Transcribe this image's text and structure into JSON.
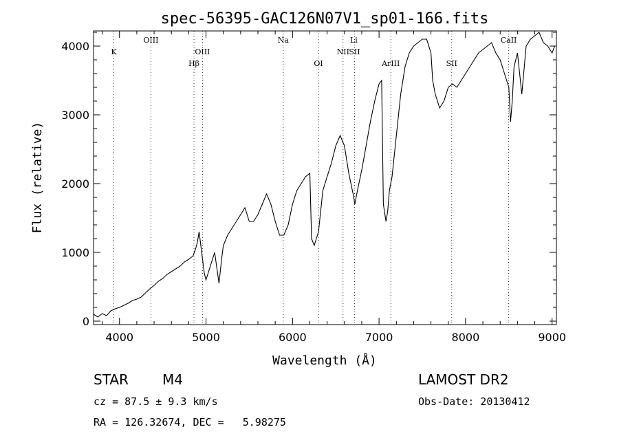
{
  "chart_data": {
    "type": "line",
    "title": "spec-56395-GAC126N07V1_sp01-166.fits",
    "xlabel": "Wavelength (Å)",
    "ylabel": "Flux (relative)",
    "xlim": [
      3700,
      9050
    ],
    "ylim": [
      -50,
      4220
    ],
    "xticks": [
      4000,
      5000,
      6000,
      7000,
      8000,
      9000
    ],
    "yticks": [
      0,
      1000,
      2000,
      3000,
      4000
    ],
    "grid": false,
    "line_color": "#000000",
    "series": [
      {
        "x": [
          3700,
          3750,
          3800,
          3850,
          3900,
          3950,
          4000,
          4050,
          4100,
          4150,
          4200,
          4250,
          4300,
          4350,
          4400,
          4450,
          4500,
          4550,
          4600,
          4650,
          4700,
          4750,
          4800,
          4850,
          4880,
          4900,
          4920,
          4950,
          4980,
          5000,
          5050,
          5100,
          5150,
          5180,
          5200,
          5250,
          5300,
          5350,
          5400,
          5450,
          5500,
          5550,
          5600,
          5650,
          5700,
          5750,
          5800,
          5850,
          5900,
          5950,
          6000,
          6050,
          6100,
          6150,
          6200,
          6220,
          6250,
          6300,
          6350,
          6400,
          6450,
          6500,
          6550,
          6600,
          6650,
          6700,
          6720,
          6750,
          6800,
          6850,
          6900,
          6950,
          7000,
          7030,
          7050,
          7080,
          7100,
          7120,
          7150,
          7200,
          7250,
          7300,
          7350,
          7400,
          7450,
          7500,
          7550,
          7600,
          7620,
          7650,
          7700,
          7750,
          7800,
          7850,
          7900,
          7950,
          8000,
          8050,
          8100,
          8150,
          8200,
          8250,
          8300,
          8350,
          8400,
          8450,
          8500,
          8520,
          8540,
          8560,
          8600,
          8650,
          8700,
          8750,
          8800,
          8850,
          8900,
          8950,
          9000,
          9030
        ],
        "y": [
          100,
          60,
          110,
          80,
          150,
          180,
          200,
          230,
          260,
          300,
          320,
          350,
          410,
          470,
          520,
          580,
          620,
          680,
          720,
          760,
          800,
          860,
          900,
          950,
          1050,
          1150,
          1300,
          1000,
          700,
          600,
          800,
          1000,
          550,
          900,
          1100,
          1250,
          1350,
          1450,
          1550,
          1650,
          1450,
          1450,
          1550,
          1700,
          1850,
          1700,
          1450,
          1250,
          1250,
          1400,
          1700,
          1900,
          2000,
          2100,
          2150,
          1200,
          1100,
          1300,
          1900,
          2100,
          2300,
          2550,
          2700,
          2550,
          2150,
          1850,
          1700,
          1900,
          2200,
          2550,
          2900,
          3200,
          3450,
          3500,
          1700,
          1450,
          1600,
          1900,
          2100,
          2700,
          3300,
          3700,
          3900,
          4000,
          4050,
          4100,
          4100,
          3900,
          3500,
          3300,
          3100,
          3200,
          3400,
          3450,
          3400,
          3500,
          3600,
          3700,
          3800,
          3900,
          3950,
          4000,
          4050,
          3900,
          3800,
          3600,
          3400,
          2900,
          3200,
          3700,
          3900,
          3300,
          4000,
          4100,
          4150,
          4200,
          4050,
          4000,
          3900,
          4000
        ]
      }
    ],
    "annotations": [
      {
        "label": "K",
        "x": 3934,
        "row": 2
      },
      {
        "label": "OIII",
        "x": 4363,
        "row": 1
      },
      {
        "label": "Hβ",
        "x": 4861,
        "row": 3
      },
      {
        "label": "OIII",
        "x": 4959,
        "row": 2
      },
      {
        "label": "Na",
        "x": 5893,
        "row": 1
      },
      {
        "label": "OI",
        "x": 6300,
        "row": 3
      },
      {
        "label": "NII",
        "x": 6584,
        "row": 2
      },
      {
        "label": "Li",
        "x": 6708,
        "row": 1
      },
      {
        "label": "SII",
        "x": 6717,
        "row": 2
      },
      {
        "label": "ArIII",
        "x": 7136,
        "row": 3
      },
      {
        "label": "SII",
        "x": 7840,
        "row": 3
      },
      {
        "label": "CaII",
        "x": 8498,
        "row": 1
      }
    ],
    "line_marks": [
      3934,
      4363,
      4861,
      4959,
      5893,
      6300,
      6584,
      6717,
      7136,
      7840,
      8498
    ]
  },
  "info": {
    "object_type": "STAR",
    "subclass": "M4",
    "survey": "LAMOST DR2",
    "cz": "cz = 87.5 ± 9.3 km/s",
    "obs_date": "Obs-Date: 20130412",
    "coords": "RA = 126.32674, DEC =   5.98275"
  }
}
